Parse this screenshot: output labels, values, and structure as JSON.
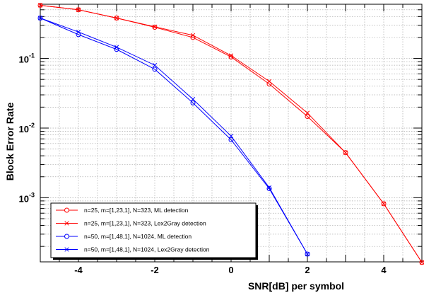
{
  "chart_data": {
    "type": "line",
    "title": "",
    "xlabel": "SNR[dB] per symbol",
    "ylabel": "Block Error Rate",
    "xlim": [
      -5,
      5
    ],
    "ylim": [
      0.00012,
      0.6
    ],
    "yscale": "log",
    "grid": true,
    "legend_position": "bottom-left",
    "x_ticks": [
      -4,
      -2,
      0,
      2,
      4
    ],
    "x_tick_labels": [
      "-4",
      "-2",
      "0",
      "2",
      "4"
    ],
    "y_ticks": [
      0.001,
      0.01,
      0.1
    ],
    "y_tick_labels": [
      {
        "base": "10",
        "exp": "-3"
      },
      {
        "base": "10",
        "exp": "-2"
      },
      {
        "base": "10",
        "exp": "-1"
      }
    ],
    "series": [
      {
        "name": "n=25, m=[1,23,1], N=323, ML detection",
        "color": "#ff0000",
        "marker": "circle",
        "x": [
          -5,
          -4,
          -3,
          -2,
          -1,
          0,
          1,
          2,
          3,
          4,
          5
        ],
        "y": [
          0.58,
          0.5,
          0.38,
          0.28,
          0.2,
          0.105,
          0.043,
          0.0147,
          0.00444,
          0.00082,
          0.000118
        ]
      },
      {
        "name": "n=25, m=[1,23,1], N=323, Lex2Gray detection",
        "color": "#ff0000",
        "marker": "x",
        "x": [
          -5,
          -4,
          -3,
          -2,
          -1,
          0,
          1,
          2,
          3,
          4,
          5
        ],
        "y": [
          0.58,
          0.5,
          0.38,
          0.285,
          0.215,
          0.11,
          0.047,
          0.0165,
          0.00444,
          0.00082,
          0.000118
        ]
      },
      {
        "name": "n=50, m=[1,48,1], N=1024, ML detection",
        "color": "#0000ff",
        "marker": "circle",
        "x": [
          -5,
          -4,
          -3,
          -2,
          -1,
          0,
          1,
          2
        ],
        "y": [
          0.38,
          0.22,
          0.135,
          0.07,
          0.023,
          0.0068,
          0.00135,
          0.000155
        ]
      },
      {
        "name": "n=50, m=[1,48,1], N=1024, Lex2Gray detection",
        "color": "#0000ff",
        "marker": "x",
        "x": [
          -5,
          -4,
          -3,
          -2,
          -1,
          0,
          1,
          2
        ],
        "y": [
          0.38,
          0.24,
          0.145,
          0.08,
          0.026,
          0.0077,
          0.0014,
          0.000155
        ]
      }
    ]
  }
}
